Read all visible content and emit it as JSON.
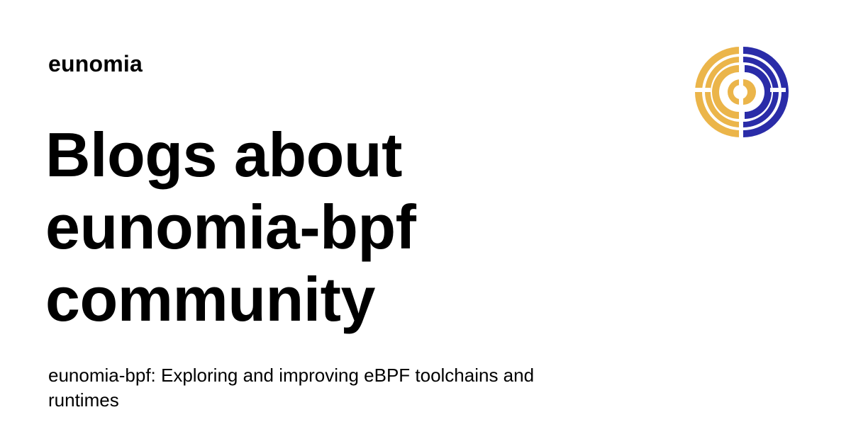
{
  "site": {
    "name": "eunomia"
  },
  "headline": {
    "lines": [
      "Blogs about",
      "eunomia-bpf",
      "community"
    ]
  },
  "description": {
    "text": "eunomia-bpf: Exploring and improving eBPF toolchains and runtimes"
  },
  "logo": {
    "icon": "eunomia-logo-icon",
    "colors": {
      "gold": "#EBB54A",
      "navy": "#2A2CA8"
    }
  },
  "theme": {
    "background": "#FFFFFF",
    "text": "#000000"
  }
}
